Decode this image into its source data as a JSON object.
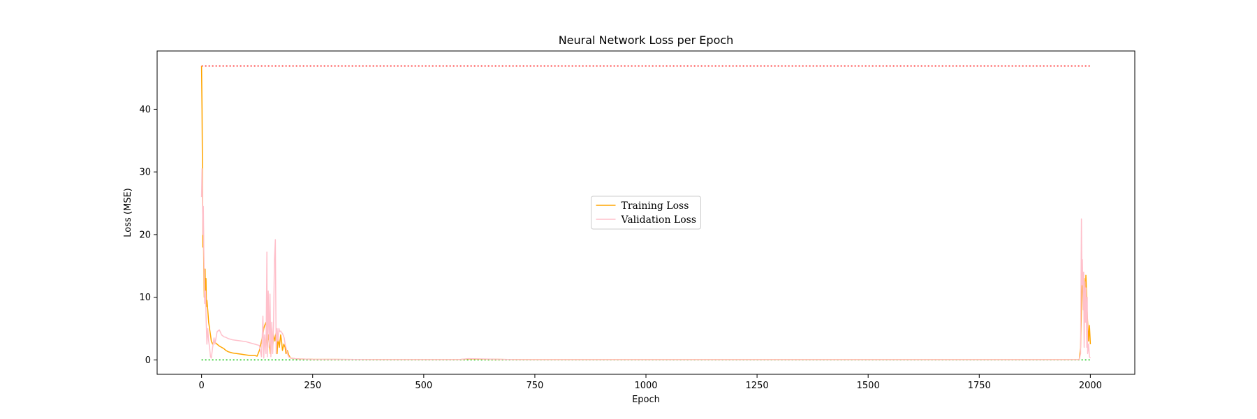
{
  "chart_data": {
    "type": "line",
    "title": "Neural Network Loss per Epoch",
    "xlabel": "Epoch",
    "ylabel": "Loss (MSE)",
    "xlim": [
      -100,
      2100
    ],
    "ylim": [
      -2.3,
      49.3
    ],
    "xticks": [
      0,
      250,
      500,
      750,
      1000,
      1250,
      1500,
      1750,
      2000
    ],
    "yticks": [
      0,
      10,
      20,
      30,
      40
    ],
    "grid": false,
    "legend": {
      "location": "center"
    },
    "reference_lines": [
      {
        "style": "dotted",
        "color": "#ff0000",
        "x": [
          0,
          2000
        ],
        "y": [
          46.9,
          46.9
        ]
      },
      {
        "style": "dotted",
        "color": "#00c000",
        "x": [
          0,
          2000
        ],
        "y": [
          0,
          0
        ]
      }
    ],
    "series": [
      {
        "name": "Training Loss",
        "color": "#ffa500",
        "x": [
          0,
          1,
          2,
          3,
          4,
          5,
          6,
          7,
          8,
          9,
          10,
          11,
          12,
          14,
          16,
          18,
          20,
          22,
          25,
          28,
          30,
          35,
          40,
          45,
          50,
          55,
          60,
          70,
          80,
          90,
          100,
          110,
          120,
          125,
          130,
          135,
          138,
          140,
          142,
          145,
          148,
          150,
          152,
          155,
          158,
          160,
          162,
          165,
          168,
          170,
          172,
          175,
          178,
          180,
          182,
          185,
          188,
          190,
          193,
          196,
          200,
          210,
          220,
          250,
          300,
          400,
          500,
          580,
          600,
          700,
          800,
          900,
          1000,
          1100,
          1200,
          1300,
          1400,
          1500,
          1600,
          1700,
          1800,
          1900,
          1975,
          1978,
          1980,
          1982,
          1984,
          1986,
          1988,
          1990,
          1992,
          1994,
          1996,
          1998,
          2000
        ],
        "y": [
          46.9,
          40,
          30.5,
          18,
          22,
          15,
          10,
          12,
          14.5,
          9,
          13,
          8.5,
          9.5,
          8,
          6,
          5,
          4,
          3,
          2.5,
          3,
          2.8,
          2.5,
          2.2,
          2.0,
          1.8,
          1.5,
          1.3,
          1.1,
          1.0,
          0.9,
          0.8,
          0.7,
          0.7,
          0.6,
          1.5,
          3,
          4,
          5,
          5.5,
          6,
          2,
          4,
          3,
          1,
          5,
          2,
          4,
          3,
          4.5,
          1,
          3.5,
          2,
          4,
          3,
          1.5,
          2.5,
          2,
          1,
          1.5,
          0.8,
          0.3,
          0.2,
          0.15,
          0.1,
          0.08,
          0.05,
          0.05,
          0.05,
          0.15,
          0.05,
          0.04,
          0.04,
          0.04,
          0.04,
          0.04,
          0.04,
          0.04,
          0.04,
          0.04,
          0.04,
          0.04,
          0.04,
          0.05,
          2,
          8,
          14,
          12,
          13,
          8,
          13.5,
          9,
          6,
          3,
          5.5,
          2.5
        ]
      },
      {
        "name": "Validation Loss",
        "color": "#ffc0cb",
        "x": [
          0,
          1,
          2,
          3,
          4,
          5,
          6,
          7,
          8,
          9,
          10,
          11,
          12,
          14,
          16,
          18,
          20,
          22,
          25,
          28,
          30,
          35,
          40,
          45,
          50,
          55,
          60,
          70,
          80,
          90,
          100,
          110,
          120,
          125,
          130,
          135,
          138,
          140,
          142,
          145,
          147,
          148,
          150,
          152,
          154,
          156,
          158,
          160,
          162,
          164,
          166,
          168,
          170,
          172,
          174,
          176,
          178,
          180,
          182,
          184,
          186,
          188,
          190,
          193,
          196,
          200,
          210,
          220,
          250,
          300,
          400,
          500,
          580,
          600,
          700,
          800,
          900,
          1000,
          1100,
          1200,
          1300,
          1400,
          1500,
          1600,
          1700,
          1800,
          1900,
          1975,
          1978,
          1980,
          1981,
          1982,
          1984,
          1985,
          1986,
          1988,
          1989,
          1990,
          1992,
          1993,
          1994,
          1996,
          1998,
          2000
        ],
        "y": [
          26,
          30.5,
          27,
          20,
          24.5,
          18,
          13,
          9,
          10,
          11,
          7,
          5,
          2.5,
          5,
          3,
          2,
          0.5,
          0.3,
          2,
          3.5,
          2.5,
          4.5,
          4.8,
          4.0,
          3.7,
          3.6,
          3.4,
          3.2,
          3.1,
          3.0,
          2.9,
          2.7,
          2.5,
          2.4,
          2.3,
          0.5,
          7,
          0.3,
          4,
          1,
          17.2,
          0.5,
          11,
          2,
          10.5,
          0.5,
          6,
          1,
          5.5,
          16,
          19.2,
          1,
          5,
          3,
          5,
          4.5,
          4.6,
          4.4,
          4.2,
          3.9,
          3.5,
          2.5,
          2,
          1,
          0.5,
          0.3,
          0.2,
          0.15,
          0.1,
          0.08,
          0.05,
          0.05,
          0.05,
          0.2,
          0.05,
          0.04,
          0.04,
          0.04,
          0.04,
          0.04,
          0.04,
          0.04,
          0.04,
          0.04,
          0.04,
          0.04,
          0.04,
          0.05,
          1,
          22.5,
          12,
          16,
          8,
          14,
          2,
          12.5,
          6,
          11.5,
          2,
          10,
          1,
          2.5,
          0.5,
          0.3
        ]
      }
    ]
  }
}
